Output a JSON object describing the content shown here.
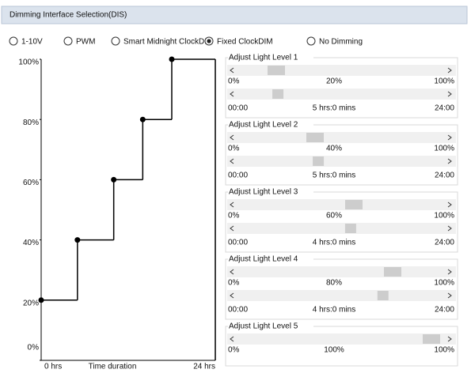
{
  "header": {
    "title": "Dimming Interface Selection(DIS)"
  },
  "modes": [
    {
      "label": "1-10V",
      "selected": false
    },
    {
      "label": "PWM",
      "selected": false
    },
    {
      "label": "Smart Midnight ClockDIM",
      "selected": false
    },
    {
      "label": "Fixed ClockDIM",
      "selected": true
    },
    {
      "label": "No Dimming",
      "selected": false
    }
  ],
  "chart": {
    "ylim": [
      0,
      100
    ],
    "xlim": [
      0,
      24
    ],
    "yticks": [
      {
        "value": 0,
        "label": "0%"
      },
      {
        "value": 20,
        "label": "20%"
      },
      {
        "value": 40,
        "label": "40%"
      },
      {
        "value": 60,
        "label": "60%"
      },
      {
        "value": 80,
        "label": "80%"
      },
      {
        "value": 100,
        "label": "100%"
      }
    ],
    "x_start_label": "0 hrs",
    "x_title": "Time duration",
    "x_end_label": "24 hrs"
  },
  "levels": [
    {
      "title": "Adjust Light Level 1",
      "level": 20,
      "level_min_label": "0%",
      "level_label": "20%",
      "level_max_label": "100%",
      "hours": 5,
      "time_min_label": "00:00",
      "time_label": "5 hrs:0 mins",
      "time_max_label": "24:00"
    },
    {
      "title": "Adjust Light Level 2",
      "level": 40,
      "level_min_label": "0%",
      "level_label": "40%",
      "level_max_label": "100%",
      "hours": 5,
      "time_min_label": "00:00",
      "time_label": "5 hrs:0 mins",
      "time_max_label": "24:00"
    },
    {
      "title": "Adjust Light Level 3",
      "level": 60,
      "level_min_label": "0%",
      "level_label": "60%",
      "level_max_label": "100%",
      "hours": 4,
      "time_min_label": "00:00",
      "time_label": "4 hrs:0 mins",
      "time_max_label": "24:00"
    },
    {
      "title": "Adjust Light Level 4",
      "level": 80,
      "level_min_label": "0%",
      "level_label": "80%",
      "level_max_label": "100%",
      "hours": 4,
      "time_min_label": "00:00",
      "time_label": "4 hrs:0 mins",
      "time_max_label": "24:00"
    },
    {
      "title": "Adjust Light Level 5",
      "level": 100,
      "level_min_label": "0%",
      "level_label": "100%",
      "level_max_label": "100%"
    }
  ]
}
